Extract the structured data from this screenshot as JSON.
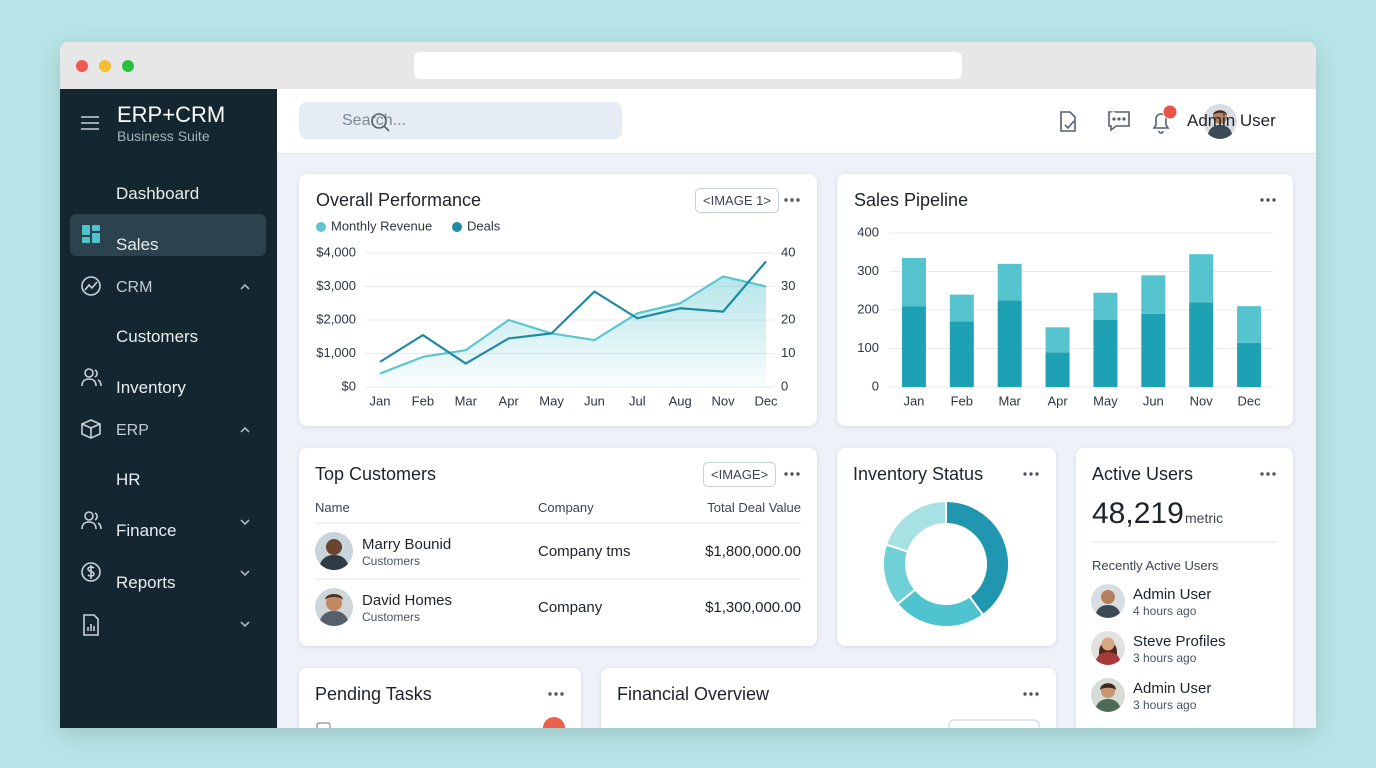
{
  "sidebar": {
    "brand": "ERP+CRM",
    "tagline": "Business Suite",
    "nav": [
      "Dashboard",
      "Sales",
      "CRM",
      "Customers",
      "Inventory",
      "ERP",
      "HR",
      "Finance",
      "Reports"
    ]
  },
  "topbar": {
    "search": "Search...",
    "notifications": "1",
    "user": "Admin User"
  },
  "performance": {
    "title": "Overall Performance",
    "badge": "<IMAGE 1>",
    "chart": {
      "type": "line",
      "categories": [
        "Jan",
        "Feb",
        "Mar",
        "Apr",
        "May",
        "Jun",
        "Jul",
        "Aug",
        "Nov",
        "Dec"
      ],
      "series": [
        {
          "name": "Monthly Revenue",
          "color": "#5cc6cf",
          "values": [
            400,
            900,
            1100,
            2000,
            1600,
            1400,
            2200,
            2500,
            3300,
            3000
          ]
        },
        {
          "name": "Deals",
          "color": "#1f8aa3",
          "axis": "y2",
          "values": [
            7.5,
            15.5,
            7,
            14.5,
            16,
            28.5,
            20.5,
            23.5,
            22.5,
            37.5
          ]
        }
      ],
      "ylim": [
        0,
        4000
      ],
      "yticks": [
        {
          "value": 0,
          "label": "$0"
        },
        {
          "value": 1000,
          "label": "$1,000"
        },
        {
          "value": 2000,
          "label": "$2,000"
        },
        {
          "value": 3000,
          "label": "$3,000"
        },
        {
          "value": 4000,
          "label": "$4,000"
        }
      ],
      "y2lim": [
        0,
        40
      ],
      "y2ticks": [
        0,
        10,
        20,
        30,
        40
      ],
      "grid": true
    }
  },
  "pipeline": {
    "title": "Sales Pipeline",
    "chart": {
      "type": "stacked-bar",
      "categories": [
        "Jan",
        "Feb",
        "Mar",
        "Apr",
        "May",
        "Jun",
        "Nov",
        "Dec"
      ],
      "series": [
        {
          "color": "#1ea2b3",
          "values": [
            210,
            170,
            225,
            90,
            175,
            190,
            220,
            115
          ]
        },
        {
          "color": "#55c4cf",
          "values": [
            125,
            70,
            95,
            65,
            70,
            100,
            125,
            95
          ]
        }
      ],
      "ylim": [
        0,
        400
      ],
      "yticks": [
        0,
        100,
        200,
        300,
        400
      ],
      "grid": true
    }
  },
  "customers": {
    "title": "Top Customers",
    "badge": "<IMAGE>",
    "columns": [
      "Name",
      "Company",
      "Total Deal Value"
    ],
    "rows": [
      [
        "Marry Bounid",
        "Customers",
        "Company tms",
        "$1,800,000.00"
      ],
      [
        "David Homes",
        "Customers",
        "Company",
        "$1,300,000.00"
      ]
    ]
  },
  "inventory": {
    "title": "Inventory Status",
    "chart": {
      "type": "donut",
      "values": [
        40,
        24,
        16,
        20
      ],
      "colors": [
        "#2196b0",
        "#4fc3cf",
        "#6fd0d8",
        "#a8e1e4"
      ]
    }
  },
  "active": {
    "title": "Active Users",
    "count": "48,219",
    "unit": "metric",
    "subtitle": "Recently Active Users",
    "users": [
      [
        "Admin User",
        "4 hours ago"
      ],
      [
        "Steve Profiles",
        "3 hours ago"
      ],
      [
        "Admin User",
        "3 hours ago"
      ]
    ]
  },
  "pending": {
    "title": "Pending Tasks"
  },
  "financial": {
    "title": "Financial Overview"
  }
}
